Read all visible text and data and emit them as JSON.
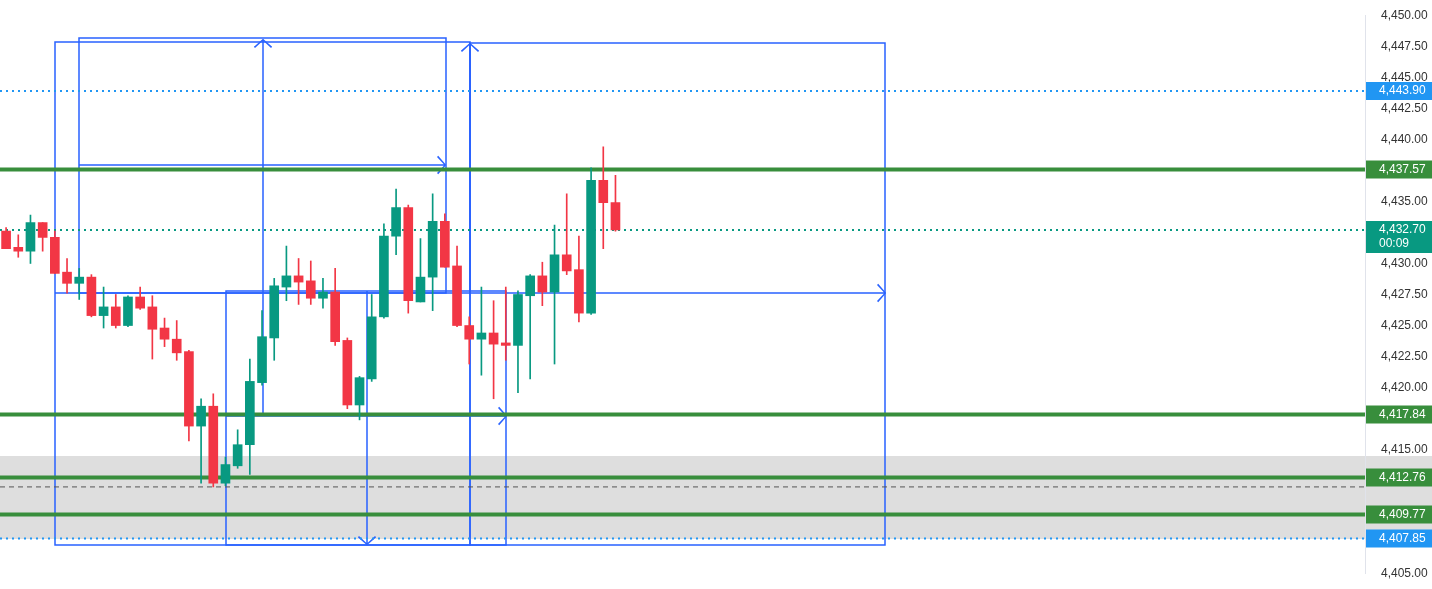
{
  "chart_data": {
    "type": "candlestick",
    "categories": [
      null,
      null,
      null,
      null,
      null,
      null,
      null,
      null,
      null,
      null,
      null,
      null,
      null,
      null,
      null,
      null,
      null,
      null,
      null,
      null,
      null,
      null,
      null,
      null,
      null,
      null,
      null,
      null,
      null,
      null,
      null,
      null,
      null,
      null,
      null,
      null,
      null,
      null,
      null,
      null,
      null,
      null,
      null,
      null,
      null,
      null,
      null,
      null,
      null,
      null,
      null,
      null,
      null,
      null,
      null,
      null,
      null,
      null,
      null,
      null,
      null,
      null,
      null,
      null,
      null,
      null,
      null,
      null,
      null,
      null,
      null,
      null,
      null,
      null,
      null,
      null,
      null,
      null,
      null,
      null,
      null,
      null,
      null,
      null,
      null,
      null,
      null,
      null,
      null,
      null,
      null,
      null,
      null,
      null,
      null,
      null,
      null,
      null,
      null,
      null,
      null,
      null,
      null,
      null,
      null,
      null,
      null,
      null,
      null,
      null,
      null,
      null
    ],
    "ohlc": [
      [
        4432.6,
        4432.9,
        4431.2,
        4431.2
      ],
      [
        4431.3,
        4432.3,
        4430.5,
        4431.0
      ],
      [
        4431.0,
        4433.9,
        4430.0,
        4433.3
      ],
      [
        4433.3,
        4433.3,
        4431.0,
        4432.1
      ],
      [
        4432.1,
        4432.6,
        4429.2,
        4429.2
      ],
      [
        4429.3,
        4430.4,
        4427.6,
        4428.4
      ],
      [
        4428.4,
        4429.6,
        4427.1,
        4428.9
      ],
      [
        4428.9,
        4429.1,
        4425.7,
        4425.8
      ],
      [
        4425.8,
        4428.1,
        4424.8,
        4426.5
      ],
      [
        4426.5,
        4427.5,
        4424.8,
        4425.0
      ],
      [
        4425.0,
        4427.4,
        4424.9,
        4427.3
      ],
      [
        4427.3,
        4428.1,
        4426.3,
        4426.4
      ],
      [
        4426.5,
        4427.4,
        4422.3,
        4424.7
      ],
      [
        4424.8,
        4425.6,
        4423.3,
        4423.9
      ],
      [
        4423.9,
        4425.4,
        4422.2,
        4422.8
      ],
      [
        4422.9,
        4423.0,
        4415.7,
        4416.9
      ],
      [
        4416.9,
        4419.1,
        4412.3,
        4418.5
      ],
      [
        4418.5,
        4419.5,
        4412.0,
        4412.3
      ],
      [
        4412.3,
        4414.4,
        4412.1,
        4413.8
      ],
      [
        4413.7,
        4416.6,
        4413.5,
        4415.4
      ],
      [
        4415.4,
        4422.3,
        4413.0,
        4420.5
      ],
      [
        4420.4,
        4426.2,
        4420.2,
        4424.1
      ],
      [
        4424.0,
        4428.8,
        4422.2,
        4428.2
      ],
      [
        4428.1,
        4431.4,
        4427.0,
        4429.0
      ],
      [
        4429.0,
        4430.4,
        4426.7,
        4428.5
      ],
      [
        4428.6,
        4430.2,
        4426.7,
        4427.2
      ],
      [
        4427.2,
        4428.8,
        4426.4,
        4427.7
      ],
      [
        4427.7,
        4429.6,
        4423.4,
        4423.7
      ],
      [
        4423.8,
        4424.0,
        4418.3,
        4418.6
      ],
      [
        4418.6,
        4420.9,
        4417.4,
        4420.8
      ],
      [
        4420.7,
        4427.5,
        4420.5,
        4425.7
      ],
      [
        4425.7,
        4433.2,
        4425.6,
        4432.2
      ],
      [
        4432.2,
        4436.0,
        4430.7,
        4434.5
      ],
      [
        4434.5,
        4434.7,
        4426.0,
        4427.0
      ],
      [
        4426.9,
        4432.0,
        4426.9,
        4428.9
      ],
      [
        4428.9,
        4435.6,
        4426.2,
        4433.4
      ],
      [
        4433.4,
        4434.0,
        4429.7,
        4429.7
      ],
      [
        4429.8,
        4431.4,
        4424.9,
        4425.0
      ],
      [
        4425.0,
        4425.7,
        4421.9,
        4423.9
      ],
      [
        4423.9,
        4428.1,
        4421.0,
        4424.4
      ],
      [
        4424.4,
        4427.0,
        4419.1,
        4423.5
      ],
      [
        4423.6,
        4428.1,
        4422.2,
        4423.4
      ],
      [
        4423.4,
        4427.8,
        4419.6,
        4427.5
      ],
      [
        4427.4,
        4429.1,
        4420.7,
        4429.0
      ],
      [
        4429.0,
        4430.1,
        4426.6,
        4427.7
      ],
      [
        4427.7,
        4433.1,
        4421.9,
        4430.7
      ],
      [
        4430.7,
        4435.6,
        4429.1,
        4429.4
      ],
      [
        4429.5,
        4432.2,
        4425.3,
        4426.0
      ],
      [
        4426.0,
        4437.7,
        4425.9,
        4436.7
      ],
      [
        4436.7,
        4439.4,
        4431.2,
        4434.9
      ],
      [
        4434.9,
        4437.1,
        4432.6,
        4432.7
      ],
      null,
      null,
      null,
      null,
      null,
      null,
      null,
      null,
      null,
      null,
      null,
      null,
      null,
      null,
      null,
      null,
      null,
      null,
      null,
      null,
      null,
      null,
      null,
      null,
      null,
      null,
      null,
      null,
      null,
      null,
      null,
      null,
      null,
      null,
      null,
      null,
      null,
      null,
      null,
      null,
      null,
      null,
      null,
      null,
      null,
      null,
      null,
      null,
      null,
      null,
      null,
      null,
      null,
      null,
      null,
      null,
      null,
      null,
      null,
      null,
      null
    ],
    "colors": [
      "#f23645",
      "#f23645",
      "#089981",
      "#f23645",
      "#f23645",
      "#f23645",
      "#089981",
      "#f23645",
      "#089981",
      "#f23645",
      "#089981",
      "#f23645",
      "#f23645",
      "#f23645",
      "#f23645",
      "#f23645",
      "#089981",
      "#f23645",
      "#089981",
      "#089981",
      "#089981",
      "#089981",
      "#089981",
      "#089981",
      "#f23645",
      "#f23645",
      "#089981",
      "#f23645",
      "#f23645",
      "#089981",
      "#089981",
      "#089981",
      "#089981",
      "#f23645",
      "#089981",
      "#089981",
      "#f23645",
      "#f23645",
      "#f23645",
      "#089981",
      "#f23645",
      "#f23645",
      "#089981",
      "#089981",
      "#f23645",
      "#089981",
      "#f23645",
      "#f23645",
      "#089981",
      "#f23645",
      "#f23645",
      null,
      null,
      null,
      null,
      null,
      null,
      null,
      null,
      null,
      null,
      null,
      null,
      null,
      null,
      null,
      null,
      null,
      null,
      null,
      null,
      null,
      null,
      null,
      null,
      null,
      null,
      null,
      null,
      null,
      null,
      null,
      null,
      null,
      null,
      null,
      null,
      null,
      null,
      null,
      null,
      null,
      null,
      null,
      null,
      null,
      null,
      null,
      null,
      null,
      null,
      null,
      null,
      null,
      null,
      null,
      null,
      null,
      null,
      null,
      null,
      null
    ],
    "ylim": [
      4405,
      4450
    ],
    "yticks": [
      {
        "value": 4405,
        "label": "4,405.00"
      },
      {
        "value": 4415,
        "label": "4,415.00"
      },
      {
        "value": 4420,
        "label": "4,420.00"
      },
      {
        "value": 4422.5,
        "label": "4,422.50"
      },
      {
        "value": 4425,
        "label": "4,425.00"
      },
      {
        "value": 4427.5,
        "label": "4,427.50"
      },
      {
        "value": 4430,
        "label": "4,430.00"
      },
      {
        "value": 4435,
        "label": "4,435.00"
      },
      {
        "value": 4440,
        "label": "4,440.00"
      },
      {
        "value": 4442.5,
        "label": "4,442.50"
      },
      {
        "value": 4445,
        "label": "4,445.00"
      },
      {
        "value": 4447.5,
        "label": "4,447.50"
      },
      {
        "value": 4450,
        "label": "4,450.00"
      }
    ],
    "tick_labels": "y",
    "bands": [
      {
        "axis": "y",
        "from": 4407.8,
        "to": 4414.5,
        "color": "#dedede"
      }
    ],
    "ref_lines": [
      {
        "axis": "y",
        "value": 4443.9,
        "label": "4,443.90",
        "color": "#2196f3",
        "line_style": "dotted"
      },
      {
        "axis": "y",
        "value": 4437.57,
        "label": "4,437.57",
        "color": "#388e3c",
        "line_style": "solid"
      },
      {
        "axis": "y",
        "value": 4432.7,
        "label": "4,432.70",
        "color": "#089981",
        "line_style": "dotted"
      },
      {
        "axis": "y",
        "value": 4417.84,
        "label": "4,417.84",
        "color": "#388e3c",
        "line_style": "solid"
      },
      {
        "axis": "y",
        "value": 4412.76,
        "label": "4,412.76",
        "color": "#388e3c",
        "line_style": "solid"
      },
      {
        "axis": "y",
        "value": 4412.0,
        "label": null,
        "color": "#555555",
        "line_style": "dashed"
      },
      {
        "axis": "y",
        "value": 4409.77,
        "label": "4,409.77",
        "color": "#388e3c",
        "line_style": "solid"
      },
      {
        "axis": "y",
        "value": 4407.85,
        "label": "4,407.85",
        "color": "#2196f3",
        "line_style": "dotted"
      }
    ],
    "annotations": [
      "00:09"
    ]
  }
}
